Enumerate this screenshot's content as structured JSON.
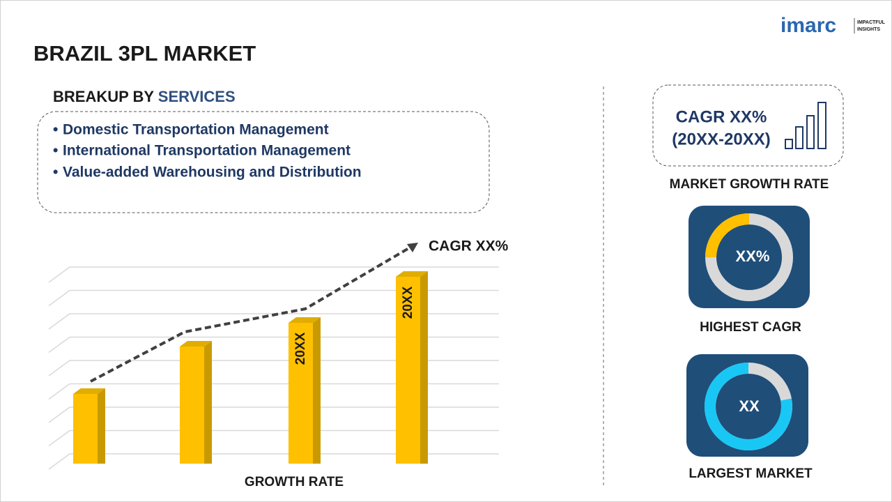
{
  "logo": {
    "name": "imarc",
    "tagline": [
      "IMPACTFUL",
      "INSIGHTS"
    ]
  },
  "title": "BRAZIL 3PL MARKET",
  "breakup": {
    "heading_prefix": "BREAKUP BY",
    "heading_highlight": "SERVICES",
    "items": [
      "Domestic Transportation Management",
      "International Transportation Management",
      "Value-added Warehousing and Distribution"
    ]
  },
  "growth_chart": {
    "trend_label": "CAGR XX%",
    "bar_labels": [
      "20XX",
      "20XX"
    ],
    "axis_label": "GROWTH RATE"
  },
  "cagr_card": {
    "lines": [
      "CAGR XX%",
      "(20XX-20XX)"
    ],
    "caption": "MARKET GROWTH RATE"
  },
  "highest_cagr": {
    "value": "XX%",
    "caption": "HIGHEST CAGR"
  },
  "largest_market": {
    "value": "XX",
    "caption": "LARGEST MARKET"
  }
}
